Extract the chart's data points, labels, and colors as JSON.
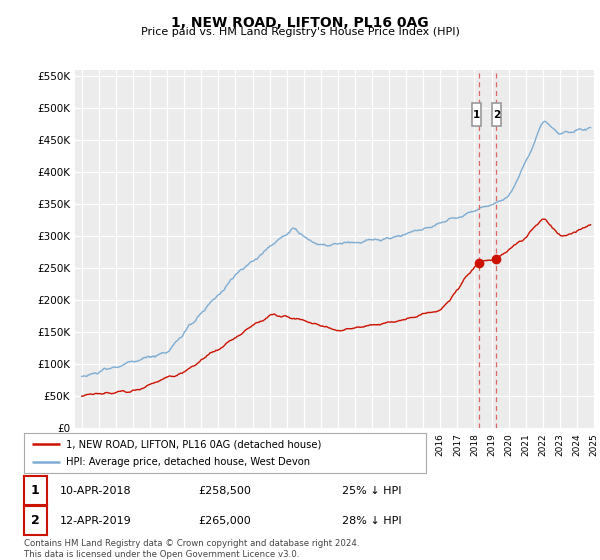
{
  "title": "1, NEW ROAD, LIFTON, PL16 0AG",
  "subtitle": "Price paid vs. HM Land Registry's House Price Index (HPI)",
  "ylabel_ticks": [
    "£0",
    "£50K",
    "£100K",
    "£150K",
    "£200K",
    "£250K",
    "£300K",
    "£350K",
    "£400K",
    "£450K",
    "£500K",
    "£550K"
  ],
  "ytick_values": [
    0,
    50000,
    100000,
    150000,
    200000,
    250000,
    300000,
    350000,
    400000,
    450000,
    500000,
    550000
  ],
  "ylim": [
    0,
    560000
  ],
  "xlim_left": 1994.6,
  "xlim_right": 2025.0,
  "hpi_color": "#7dadd4",
  "price_color": "#cc1100",
  "dashed_line_color": "#cc1100",
  "marker1_x": 2018.27,
  "marker1_y": 258500,
  "marker2_x": 2019.28,
  "marker2_y": 265000,
  "sale1_date": "10-APR-2018",
  "sale1_price": "£258,500",
  "sale1_note": "25% ↓ HPI",
  "sale2_date": "12-APR-2019",
  "sale2_price": "£265,000",
  "sale2_note": "28% ↓ HPI",
  "legend1": "1, NEW ROAD, LIFTON, PL16 0AG (detached house)",
  "legend2": "HPI: Average price, detached house, West Devon",
  "footer": "Contains HM Land Registry data © Crown copyright and database right 2024.\nThis data is licensed under the Open Government Licence v3.0.",
  "background_color": "#ffffff",
  "plot_background": "#ececec",
  "grid_color": "#ffffff"
}
